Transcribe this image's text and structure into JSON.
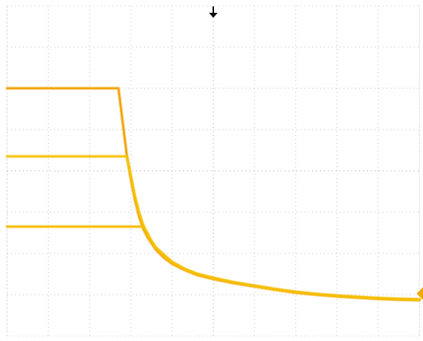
{
  "chart_data": {
    "type": "line",
    "grid": true,
    "xlim": [
      0,
      10
    ],
    "ylim": [
      0,
      8
    ],
    "x_divisions": 10,
    "y_divisions": 8,
    "trigger_marker": {
      "x": 5.0,
      "icon": "down-arrow-icon",
      "color": "#000000"
    },
    "ground_marker": {
      "y": 1.2,
      "icon": "right-triangle-icon",
      "color": "#F2A900"
    },
    "series": [
      {
        "color": "#F2A100",
        "x": [
          0,
          2.7,
          2.8,
          2.9,
          3.0,
          3.1,
          3.2,
          3.3,
          3.4,
          3.6,
          3.8,
          4.0,
          4.3,
          4.6,
          5.0,
          5.5,
          6.0,
          6.5,
          7.0,
          7.5,
          8.0,
          8.5,
          9.0,
          9.5,
          10
        ],
        "y": [
          6.0,
          6.0,
          5.2,
          4.4,
          3.8,
          3.3,
          2.9,
          2.6,
          2.4,
          2.1,
          1.9,
          1.75,
          1.6,
          1.48,
          1.38,
          1.28,
          1.2,
          1.12,
          1.05,
          1.0,
          0.96,
          0.93,
          0.9,
          0.88,
          0.87
        ]
      },
      {
        "color": "#F5C200",
        "x": [
          0,
          2.9,
          3.0,
          3.1,
          3.2,
          3.3,
          3.4,
          3.6,
          3.8,
          4.0,
          4.3,
          4.6,
          5.0,
          5.5,
          6.0,
          6.5,
          7.0,
          7.5,
          8.0,
          8.5,
          9.0,
          9.5,
          10
        ],
        "y": [
          4.35,
          4.35,
          3.9,
          3.4,
          3.0,
          2.7,
          2.45,
          2.15,
          1.95,
          1.78,
          1.62,
          1.5,
          1.4,
          1.3,
          1.21,
          1.13,
          1.06,
          1.01,
          0.97,
          0.94,
          0.91,
          0.89,
          0.88
        ]
      },
      {
        "color": "#F5BE00",
        "x": [
          0,
          3.3,
          3.4,
          3.5,
          3.6,
          3.8,
          4.0,
          4.3,
          4.6,
          5.0,
          5.5,
          6.0,
          6.5,
          7.0,
          7.5,
          8.0,
          8.5,
          9.0,
          9.5,
          10
        ],
        "y": [
          2.65,
          2.65,
          2.5,
          2.3,
          2.15,
          1.97,
          1.8,
          1.63,
          1.51,
          1.41,
          1.3,
          1.22,
          1.14,
          1.07,
          1.02,
          0.98,
          0.95,
          0.92,
          0.9,
          0.89
        ]
      }
    ]
  }
}
